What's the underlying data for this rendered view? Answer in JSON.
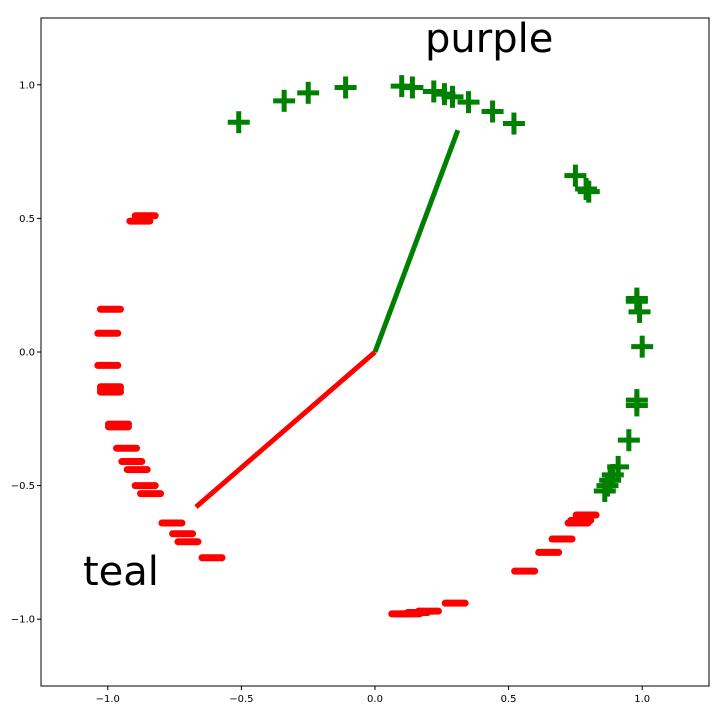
{
  "chart_data": {
    "type": "scatter",
    "title": "",
    "xlabel": "",
    "ylabel": "",
    "xlim": [
      -1.25,
      1.25
    ],
    "ylim": [
      -1.25,
      1.25
    ],
    "grid": false,
    "xticks": [
      "−1.0",
      "−0.5",
      "0.0",
      "0.5",
      "1.0"
    ],
    "yticks": [
      "−1.0",
      "−0.5",
      "0.0",
      "0.5",
      "1.0"
    ],
    "annotations": [
      {
        "text": "purple",
        "x": 0.2,
        "y": 1.15
      },
      {
        "text": "teal",
        "x": -1.1,
        "y": -0.85
      }
    ],
    "series": [
      {
        "color": "#008000",
        "marker": "plus",
        "points": [
          [
            -0.51,
            0.86
          ],
          [
            -0.34,
            0.94
          ],
          [
            -0.25,
            0.97
          ],
          [
            -0.11,
            0.99
          ],
          [
            0.1,
            0.995
          ],
          [
            0.14,
            0.99
          ],
          [
            0.22,
            0.975
          ],
          [
            0.26,
            0.965
          ],
          [
            0.29,
            0.955
          ],
          [
            0.35,
            0.935
          ],
          [
            0.44,
            0.9
          ],
          [
            0.52,
            0.855
          ],
          [
            0.75,
            0.66
          ],
          [
            0.79,
            0.61
          ],
          [
            0.8,
            0.6
          ],
          [
            0.98,
            0.2
          ],
          [
            0.98,
            0.19
          ],
          [
            0.99,
            0.15
          ],
          [
            1.0,
            0.02
          ],
          [
            0.98,
            -0.18
          ],
          [
            0.98,
            -0.2
          ],
          [
            0.95,
            -0.33
          ],
          [
            0.91,
            -0.43
          ],
          [
            0.89,
            -0.46
          ],
          [
            0.88,
            -0.48
          ],
          [
            0.87,
            -0.5
          ],
          [
            0.86,
            -0.52
          ]
        ]
      },
      {
        "color": "#ff0000",
        "marker": "hline",
        "points": [
          [
            -0.86,
            0.51
          ],
          [
            -0.88,
            0.49
          ],
          [
            -0.99,
            0.16
          ],
          [
            -1.0,
            0.07
          ],
          [
            -1.0,
            -0.05
          ],
          [
            -0.99,
            -0.13
          ],
          [
            -0.99,
            -0.14
          ],
          [
            -0.99,
            -0.15
          ],
          [
            -0.96,
            -0.27
          ],
          [
            -0.96,
            -0.28
          ],
          [
            -0.93,
            -0.36
          ],
          [
            -0.91,
            -0.41
          ],
          [
            -0.89,
            -0.44
          ],
          [
            -0.86,
            -0.5
          ],
          [
            -0.84,
            -0.53
          ],
          [
            -0.76,
            -0.64
          ],
          [
            -0.72,
            -0.68
          ],
          [
            -0.7,
            -0.71
          ],
          [
            -0.61,
            -0.77
          ],
          [
            0.1,
            -0.98
          ],
          [
            0.13,
            -0.98
          ],
          [
            0.16,
            -0.975
          ],
          [
            0.2,
            -0.97
          ],
          [
            0.3,
            -0.94
          ],
          [
            0.56,
            -0.82
          ],
          [
            0.65,
            -0.75
          ],
          [
            0.7,
            -0.7
          ],
          [
            0.76,
            -0.64
          ],
          [
            0.77,
            -0.63
          ],
          [
            0.79,
            -0.61
          ]
        ]
      }
    ],
    "lines": [
      {
        "color": "#008000",
        "from": [
          0,
          0
        ],
        "to": [
          0.31,
          0.83
        ]
      },
      {
        "color": "#ff0000",
        "from": [
          0,
          0
        ],
        "to": [
          -0.67,
          -0.58
        ]
      }
    ]
  }
}
